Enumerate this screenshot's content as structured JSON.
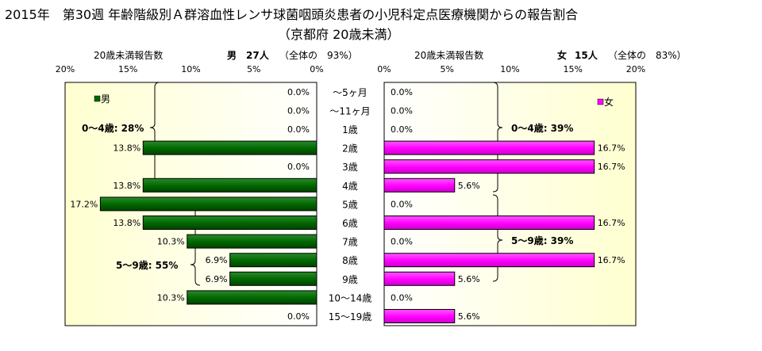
{
  "title_line1": "2015年　第30週 年齢階級別Ａ群溶血性レンサ球菌咽頭炎患者の小児科定点医療機関からの報告割合",
  "title_line2": "（京都府 20歳未満）",
  "male_panel": {
    "axis_caption": "20歳未満報告数",
    "summary_sex": "男",
    "summary_count": "27人",
    "summary_share": "（全体の　93%）",
    "legend": "男",
    "color": "#006600"
  },
  "female_panel": {
    "axis_caption": "20歳未満報告数",
    "summary_sex": "女",
    "summary_count": "15人",
    "summary_share": "（全体の　83%）",
    "legend": "女",
    "color": "#FF00FF"
  },
  "groups": {
    "male_0_4": "0～4歳: 28%",
    "male_5_9": "5～9歳: 55%",
    "female_0_4": "0～4歳: 39%",
    "female_5_9": "5～9歳: 39%"
  },
  "chart_data": {
    "type": "bar",
    "orientation": "horizontal",
    "layout": "population-pyramid",
    "categories": [
      "～5ヶ月",
      "～11ヶ月",
      "1歳",
      "2歳",
      "3歳",
      "4歳",
      "5歳",
      "6歳",
      "7歳",
      "8歳",
      "9歳",
      "10～14歳",
      "15～19歳"
    ],
    "series": [
      {
        "name": "男",
        "color": "#006600",
        "values": [
          0.0,
          0.0,
          0.0,
          13.8,
          0.0,
          13.8,
          17.2,
          13.8,
          10.3,
          6.9,
          6.9,
          10.3,
          0.0
        ],
        "labels": [
          "0.0%",
          "0.0%",
          "0.0%",
          "13.8%",
          "0.0%",
          "13.8%",
          "17.2%",
          "13.8%",
          "10.3%",
          "6.9%",
          "6.9%",
          "10.3%",
          "0.0%"
        ]
      },
      {
        "name": "女",
        "color": "#FF00FF",
        "values": [
          0.0,
          0.0,
          0.0,
          16.7,
          16.7,
          5.6,
          0.0,
          16.7,
          0.0,
          16.7,
          5.6,
          0.0,
          5.6
        ],
        "labels": [
          "0.0%",
          "0.0%",
          "0.0%",
          "16.7%",
          "16.7%",
          "5.6%",
          "0.0%",
          "16.7%",
          "0.0%",
          "16.7%",
          "5.6%",
          "0.0%",
          "5.6%"
        ]
      }
    ],
    "xlim": [
      0,
      20
    ],
    "x_ticks": [
      "0%",
      "5%",
      "10%",
      "15%",
      "20%"
    ],
    "male_x_ticks_left_to_right": [
      "20%",
      "15%",
      "10%",
      "5%",
      "0%"
    ],
    "female_x_ticks_left_to_right": [
      "0%",
      "5%",
      "10%",
      "15%",
      "20%"
    ],
    "plot_background": "gradient white to light yellow",
    "grid": false
  }
}
